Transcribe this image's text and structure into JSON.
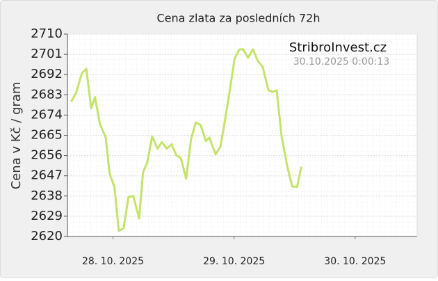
{
  "chart_data": {
    "type": "line",
    "title": "Cena zlata za posledních 72h",
    "ylabel": "Cena v Kč / gram",
    "annotations": [
      "StribroInvest.cz",
      "30.10.2025 0:00:13"
    ],
    "x": [
      1.4,
      2.4,
      3.6,
      4.5,
      5.5,
      6.3,
      7.3,
      8.5,
      9.3,
      10.3,
      11.2,
      12.2,
      13.2,
      14.2,
      15.4,
      16.2,
      17.1,
      18.1,
      19.2,
      20.1,
      21.1,
      22.1,
      23.1,
      24.0,
      25.1,
      26.1,
      27.1,
      28.1,
      29.2,
      29.9,
      31.2,
      32.2,
      33.2,
      34.2,
      35.1,
      36.1,
      36.9,
      37.9,
      38.9,
      39.9,
      40.9,
      42.1,
      43.0,
      43.8,
      44.8,
      46.0,
      47.0,
      48.0,
      48.9
    ],
    "series": [
      {
        "name": "Cena zlata",
        "color": "#c5e36b",
        "values": [
          2680,
          2684,
          2692.7,
          2694.5,
          2677,
          2682,
          2670,
          2664,
          2648,
          2642,
          2622.5,
          2623.7,
          2637.6,
          2638,
          2628,
          2648.5,
          2653,
          2664.5,
          2659,
          2662,
          2659,
          2661,
          2656,
          2655,
          2645.7,
          2663,
          2670.7,
          2669.5,
          2662.4,
          2664,
          2656.5,
          2660,
          2672.6,
          2686,
          2699,
          2703.2,
          2703.2,
          2699.5,
          2703.2,
          2698,
          2695.5,
          2685,
          2684.3,
          2685,
          2664.8,
          2651,
          2642.3,
          2642,
          2651
        ]
      }
    ],
    "xlim": [
      0.6,
      72.8
    ],
    "xticks": [
      {
        "value": 10,
        "label": "28. 10. 2025"
      },
      {
        "value": 35,
        "label": "29. 10. 2025"
      },
      {
        "value": 60,
        "label": "30. 10. 2025"
      }
    ],
    "ylim": [
      2620,
      2710
    ],
    "yticks": [
      2620,
      2629,
      2638,
      2647,
      2656,
      2665,
      2674,
      2683,
      2692,
      2701,
      2710
    ],
    "grid": true
  }
}
